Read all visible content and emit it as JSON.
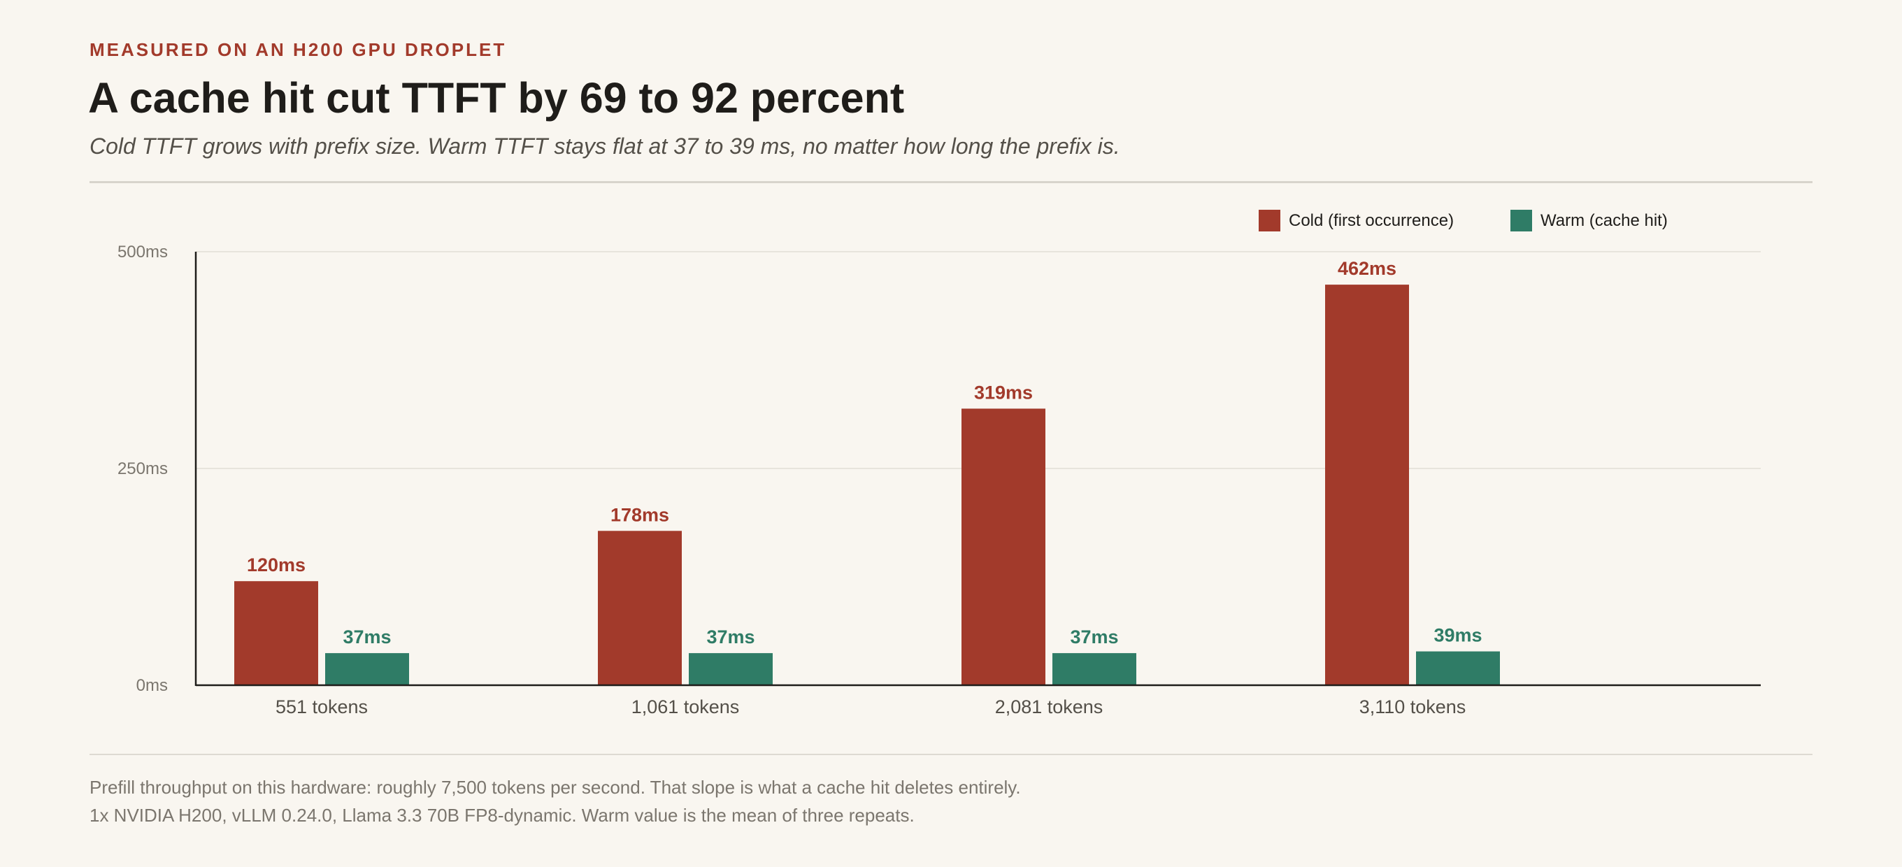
{
  "header": {
    "eyebrow": "MEASURED ON AN H200 GPU DROPLET",
    "title": "A cache hit cut TTFT by 69 to 92 percent",
    "subtitle": "Cold TTFT grows with prefix size. Warm TTFT stays flat at 37 to 39 ms, no matter how long the prefix is."
  },
  "legend": {
    "cold": "Cold (first occurrence)",
    "warm": "Warm (cache hit)"
  },
  "footer": {
    "line1": "Prefill throughput on this hardware: roughly 7,500 tokens per second. That slope is what a cache hit deletes entirely.",
    "line2": "1x NVIDIA H200, vLLM 0.24.0, Llama 3.3 70B FP8-dynamic. Warm value is the mean of three repeats."
  },
  "colors": {
    "cold": "#a23a2b",
    "warm": "#2f7c66"
  },
  "chart_data": {
    "type": "bar",
    "categories": [
      "551 tokens",
      "1,061 tokens",
      "2,081 tokens",
      "3,110 tokens"
    ],
    "series": [
      {
        "name": "Cold (first occurrence)",
        "values": [
          120,
          178,
          319,
          462
        ],
        "labels": [
          "120ms",
          "178ms",
          "319ms",
          "462ms"
        ]
      },
      {
        "name": "Warm (cache hit)",
        "values": [
          37,
          37,
          37,
          39
        ],
        "labels": [
          "37ms",
          "37ms",
          "37ms",
          "39ms"
        ]
      }
    ],
    "ylim": [
      0,
      500
    ],
    "yticks": [
      0,
      250,
      500
    ],
    "ytick_labels": [
      "0ms",
      "250ms",
      "500ms"
    ],
    "grid": true,
    "legend_position": "top-right"
  }
}
